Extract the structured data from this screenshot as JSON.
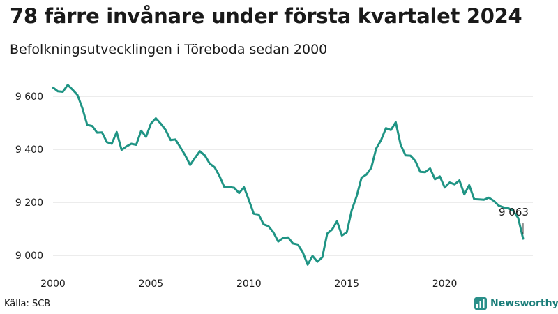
{
  "header": {
    "title": "78 färre invånare under första kvartalet 2024",
    "subtitle": "Befolkningsutvecklingen i Töreboda sedan 2000"
  },
  "footer": {
    "source": "Källa: SCB",
    "brand": "Newsworthy"
  },
  "colors": {
    "line": "#1f9484",
    "grid": "#d9d9d9",
    "text": "#1a1a1a",
    "brand": "#1a7d79"
  },
  "chart_data": {
    "type": "line",
    "title": "78 färre invånare under första kvartalet 2024",
    "subtitle": "Befolkningsutvecklingen i Töreboda sedan 2000",
    "xlabel": "",
    "ylabel": "",
    "x_ticks": [
      2000,
      2005,
      2010,
      2015,
      2020
    ],
    "x_tick_labels": [
      "2000",
      "2005",
      "2010",
      "2015",
      "2020"
    ],
    "y_ticks": [
      9000,
      9200,
      9400,
      9600
    ],
    "y_tick_labels": [
      "9 000",
      "9 200",
      "9 400",
      "9 600"
    ],
    "xlim": [
      2000,
      2024.5
    ],
    "ylim": [
      8950,
      9700
    ],
    "grid": true,
    "annotation": {
      "text": "9 063",
      "x": 2024.0,
      "y": 9063
    },
    "series": [
      {
        "name": "Befolkning",
        "x": [
          2000.0,
          2000.25,
          2000.5,
          2000.75,
          2001.0,
          2001.25,
          2001.5,
          2001.75,
          2002.0,
          2002.25,
          2002.5,
          2002.75,
          2003.0,
          2003.25,
          2003.5,
          2003.75,
          2004.0,
          2004.25,
          2004.5,
          2004.75,
          2005.0,
          2005.25,
          2005.5,
          2005.75,
          2006.0,
          2006.25,
          2006.5,
          2006.75,
          2007.0,
          2007.25,
          2007.5,
          2007.75,
          2008.0,
          2008.25,
          2008.5,
          2008.75,
          2009.0,
          2009.25,
          2009.5,
          2009.75,
          2010.0,
          2010.25,
          2010.5,
          2010.75,
          2011.0,
          2011.25,
          2011.5,
          2011.75,
          2012.0,
          2012.25,
          2012.5,
          2012.75,
          2013.0,
          2013.25,
          2013.5,
          2013.75,
          2014.0,
          2014.25,
          2014.5,
          2014.75,
          2015.0,
          2015.25,
          2015.5,
          2015.75,
          2016.0,
          2016.25,
          2016.5,
          2016.75,
          2017.0,
          2017.25,
          2017.5,
          2017.75,
          2018.0,
          2018.25,
          2018.5,
          2018.75,
          2019.0,
          2019.25,
          2019.5,
          2019.75,
          2020.0,
          2020.25,
          2020.5,
          2020.75,
          2021.0,
          2021.25,
          2021.5,
          2021.75,
          2022.0,
          2022.25,
          2022.5,
          2022.75,
          2023.0,
          2023.25,
          2023.5,
          2023.75,
          2024.0
        ],
        "values": [
          9633,
          9619,
          9617,
          9643,
          9625,
          9605,
          9555,
          9492,
          9488,
          9463,
          9464,
          9427,
          9421,
          9465,
          9398,
          9411,
          9421,
          9417,
          9470,
          9447,
          9497,
          9517,
          9497,
          9473,
          9435,
          9437,
          9408,
          9377,
          9341,
          9368,
          9393,
          9377,
          9346,
          9332,
          9299,
          9257,
          9258,
          9255,
          9235,
          9257,
          9209,
          9157,
          9154,
          9117,
          9110,
          9087,
          9052,
          9066,
          9068,
          9045,
          9041,
          9012,
          8965,
          8998,
          8976,
          8993,
          9082,
          9098,
          9129,
          9075,
          9087,
          9170,
          9223,
          9293,
          9305,
          9330,
          9403,
          9435,
          9480,
          9473,
          9502,
          9417,
          9377,
          9376,
          9356,
          9315,
          9314,
          9328,
          9287,
          9298,
          9256,
          9275,
          9268,
          9283,
          9230,
          9265,
          9212,
          9211,
          9210,
          9218,
          9206,
          9188,
          9181,
          9178,
          9168,
          9141,
          9063
        ]
      }
    ]
  }
}
